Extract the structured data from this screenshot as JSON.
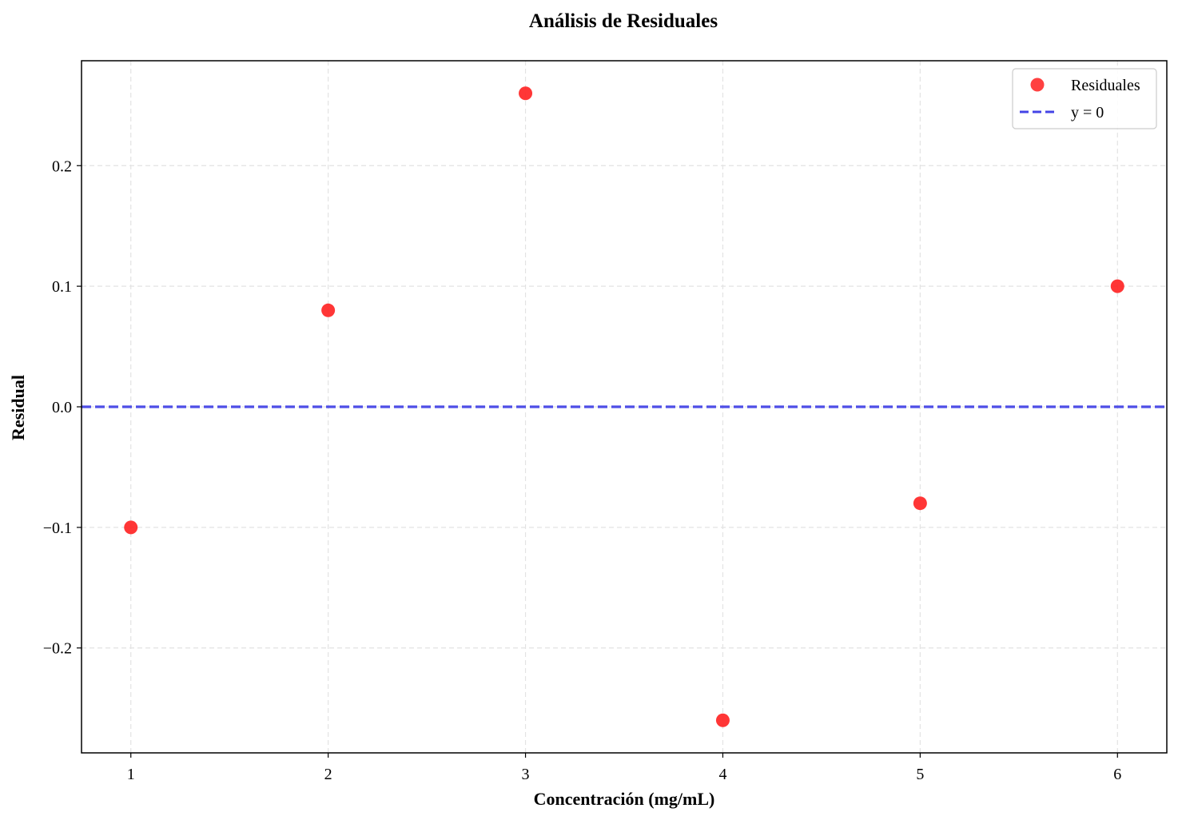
{
  "chart_data": {
    "type": "scatter",
    "title": "Análisis de Residuales",
    "xlabel": "Concentración (mg/mL)",
    "ylabel": "Residual",
    "xlim": [
      0.75,
      6.25
    ],
    "ylim": [
      -0.287,
      0.287
    ],
    "xticks": [
      1,
      2,
      3,
      4,
      5,
      6
    ],
    "xtick_labels": [
      "1",
      "2",
      "3",
      "4",
      "5",
      "6"
    ],
    "yticks": [
      -0.2,
      -0.1,
      0.0,
      0.1,
      0.2
    ],
    "ytick_labels": [
      "−0.2",
      "−0.1",
      "0.0",
      "0.1",
      "0.2"
    ],
    "grid": true,
    "legend_position": "top-right",
    "series": [
      {
        "name": "Residuales",
        "kind": "scatter",
        "color": "#ff2020",
        "x": [
          1,
          2,
          3,
          4,
          5,
          6
        ],
        "y": [
          -0.1,
          0.08,
          0.26,
          -0.26,
          -0.08,
          0.1
        ]
      },
      {
        "name": "y = 0",
        "kind": "hline",
        "color": "#4444e6",
        "style": "dashed",
        "y": 0
      }
    ]
  }
}
